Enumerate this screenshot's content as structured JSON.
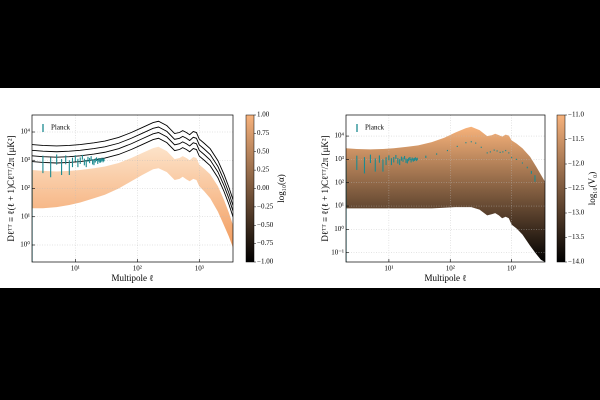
{
  "chart_data": [
    {
      "type": "line",
      "xlabel": "Multipole ℓ",
      "ylabel": "Dℓᵀᵀ ≡ ℓ(ℓ + 1)Cℓᵀᵀ/2π  [μK²]",
      "xscale": "log",
      "yscale": "log",
      "grid": true,
      "legend": "upper left",
      "xlim": [
        2,
        3500
      ],
      "ylim": [
        0.25,
        40000
      ],
      "xticks": [
        {
          "value": 10,
          "label": "10¹"
        },
        {
          "value": 100,
          "label": "10²"
        },
        {
          "value": 1000,
          "label": "10³"
        }
      ],
      "yticks": [
        {
          "value": 1,
          "label": "10⁰"
        },
        {
          "value": 10,
          "label": "10¹"
        },
        {
          "value": 100,
          "label": "10²"
        },
        {
          "value": 1000,
          "label": "10³"
        },
        {
          "value": 10000,
          "label": "10⁴"
        }
      ],
      "x": [
        2,
        3,
        5,
        8,
        12,
        20,
        30,
        50,
        80,
        120,
        180,
        220,
        300,
        400,
        480,
        540,
        620,
        700,
        800,
        900,
        1000,
        1200,
        1500,
        2000,
        2500,
        3000,
        3500
      ],
      "band": {
        "colors": [
          "#f29c5e",
          "#fde3c9"
        ],
        "lower": [
          20,
          20,
          22,
          26,
          32,
          45,
          60,
          100,
          180,
          300,
          480,
          520,
          380,
          200,
          220,
          260,
          210,
          180,
          220,
          200,
          120,
          80,
          45,
          15,
          5,
          2,
          0.8
        ],
        "upper": [
          450,
          420,
          400,
          420,
          450,
          520,
          600,
          800,
          1200,
          1800,
          2700,
          3000,
          2100,
          1100,
          1200,
          1400,
          1200,
          1000,
          1300,
          1200,
          700,
          500,
          320,
          120,
          40,
          14,
          5
        ]
      },
      "lines": [
        {
          "color": "#000000",
          "values": [
            900,
            840,
            800,
            840,
            900,
            1040,
            1200,
            1600,
            2400,
            3600,
            5400,
            6000,
            4200,
            2200,
            2400,
            2800,
            2400,
            2000,
            2600,
            2400,
            1400,
            1000,
            640,
            240,
            80,
            28,
            10
          ]
        },
        {
          "color": "#000000",
          "values": [
            1440,
            1340,
            1280,
            1340,
            1440,
            1660,
            1920,
            2560,
            3840,
            5760,
            8640,
            9600,
            6720,
            3520,
            3840,
            4480,
            3840,
            3200,
            4160,
            3840,
            2240,
            1600,
            1020,
            384,
            128,
            45,
            16
          ]
        },
        {
          "color": "#000000",
          "values": [
            2250,
            2100,
            2000,
            2100,
            2250,
            2600,
            3000,
            4000,
            6000,
            9000,
            13500,
            15000,
            10500,
            5500,
            6000,
            7000,
            6000,
            5000,
            6500,
            6000,
            3500,
            2500,
            1600,
            600,
            200,
            70,
            25
          ]
        },
        {
          "color": "#000000",
          "values": [
            3600,
            3360,
            3200,
            3360,
            3600,
            4160,
            4800,
            6400,
            9600,
            14400,
            21600,
            24000,
            16800,
            8800,
            9600,
            11200,
            9600,
            8000,
            10400,
            9600,
            5600,
            4000,
            2560,
            960,
            320,
            112,
            40
          ]
        }
      ],
      "errorbars": {
        "name": "Planck",
        "color": "#1b8a90",
        "x": [
          2,
          3,
          4,
          5,
          6,
          7,
          8,
          9,
          10,
          11,
          12,
          13,
          14,
          15,
          16,
          17,
          18,
          19,
          20,
          21,
          22,
          23,
          24,
          25,
          26,
          27,
          28,
          29
        ],
        "values": [
          250,
          900,
          750,
          1150,
          700,
          1100,
          650,
          900,
          1200,
          850,
          1000,
          1300,
          900,
          800,
          1100,
          1000,
          1200,
          900,
          850,
          1000,
          1100,
          900,
          1050,
          950,
          1000,
          1100,
          980,
          1050
        ],
        "errors": [
          600,
          550,
          500,
          450,
          400,
          380,
          350,
          330,
          300,
          280,
          260,
          250,
          240,
          230,
          220,
          210,
          200,
          190,
          180,
          170,
          165,
          160,
          155,
          150,
          145,
          140,
          135,
          130
        ]
      },
      "colorbar": {
        "label": "log₁₀(α)",
        "lim": [
          -1,
          1
        ],
        "colors": [
          "#000000",
          "#f7b27c"
        ],
        "ticks": [
          {
            "value": 1,
            "label": "1.00"
          },
          {
            "value": 0.75,
            "label": "0.75"
          },
          {
            "value": 0.5,
            "label": "0.50"
          },
          {
            "value": 0.25,
            "label": "0.25"
          },
          {
            "value": 0,
            "label": "0.00"
          },
          {
            "value": -0.25,
            "label": "−0.25"
          },
          {
            "value": -0.5,
            "label": "−0.50"
          },
          {
            "value": -0.75,
            "label": "−0.75"
          },
          {
            "value": -1,
            "label": "−1.00"
          }
        ]
      }
    },
    {
      "type": "line",
      "xlabel": "Multipole ℓ",
      "ylabel": "Dℓᵀᵀ ≡ ℓ(ℓ + 1)Cℓᵀᵀ/2π  [μK²]",
      "xscale": "log",
      "yscale": "log",
      "grid": true,
      "legend": "upper left",
      "xlim": [
        2,
        3500
      ],
      "ylim": [
        0.04,
        80000
      ],
      "xticks": [
        {
          "value": 10,
          "label": "10¹"
        },
        {
          "value": 100,
          "label": "10²"
        },
        {
          "value": 1000,
          "label": "10³"
        }
      ],
      "yticks": [
        {
          "value": 0.1,
          "label": "10⁻¹"
        },
        {
          "value": 1,
          "label": "10⁰"
        },
        {
          "value": 10,
          "label": "10¹"
        },
        {
          "value": 100,
          "label": "10²"
        },
        {
          "value": 1000,
          "label": "10³"
        },
        {
          "value": 10000,
          "label": "10⁴"
        }
      ],
      "x": [
        2,
        3,
        5,
        8,
        12,
        20,
        30,
        50,
        80,
        120,
        180,
        220,
        300,
        400,
        480,
        540,
        620,
        700,
        800,
        900,
        1000,
        1200,
        1500,
        2000,
        2500,
        3000,
        3500
      ],
      "band": {
        "colors": [
          "#000000",
          "#f7b27a"
        ],
        "lower": [
          8,
          8,
          8,
          8,
          8,
          8,
          8,
          8,
          8.5,
          9,
          9,
          9,
          7,
          4,
          4.5,
          5,
          4,
          3,
          3.5,
          3,
          1.6,
          1.1,
          0.6,
          0.2,
          0.09,
          0.05,
          0.04
        ],
        "upper": [
          3000,
          2800,
          2700,
          2800,
          3000,
          3500,
          4000,
          5500,
          8500,
          14000,
          22000,
          25000,
          18000,
          10000,
          11000,
          12500,
          11000,
          9500,
          11500,
          10500,
          6500,
          4800,
          3000,
          1300,
          500,
          220,
          110
        ]
      },
      "lines": [],
      "errorbars": {
        "name": "Planck",
        "color": "#1b8a90",
        "x": [
          2,
          3,
          4,
          5,
          6,
          7,
          8,
          9,
          10,
          11,
          12,
          13,
          14,
          15,
          16,
          17,
          18,
          19,
          20,
          21,
          22,
          23,
          24,
          25,
          26,
          27,
          28,
          29,
          40,
          60,
          90,
          130,
          180,
          220,
          260,
          320,
          400,
          450,
          520,
          580,
          650,
          720,
          800,
          900,
          1000,
          1200,
          1500,
          1800,
          2100,
          2400
        ],
        "values": [
          250,
          900,
          750,
          1150,
          700,
          1100,
          650,
          900,
          1200,
          850,
          1000,
          1300,
          900,
          800,
          1100,
          1000,
          1200,
          900,
          850,
          1000,
          1100,
          900,
          1050,
          950,
          1000,
          1100,
          980,
          1050,
          1300,
          1700,
          2400,
          3600,
          5200,
          5700,
          5000,
          3300,
          1900,
          2100,
          2500,
          2300,
          2000,
          2100,
          2400,
          1900,
          1200,
          1000,
          700,
          450,
          280,
          160
        ],
        "errors": [
          600,
          550,
          500,
          450,
          400,
          380,
          350,
          330,
          300,
          280,
          260,
          250,
          240,
          230,
          220,
          210,
          200,
          190,
          180,
          170,
          165,
          160,
          155,
          150,
          145,
          140,
          135,
          130,
          150,
          120,
          100,
          90,
          70,
          60,
          50,
          40,
          30,
          30,
          30,
          30,
          30,
          30,
          30,
          30,
          30,
          30,
          30,
          35,
          40,
          50
        ]
      },
      "colorbar": {
        "label": "log₁₀(V₀)",
        "lim": [
          -14,
          -11
        ],
        "colors": [
          "#000000",
          "#f7b27c"
        ],
        "ticks": [
          {
            "value": -11,
            "label": "−11.0"
          },
          {
            "value": -11.5,
            "label": "−11.5"
          },
          {
            "value": -12,
            "label": "−12.0"
          },
          {
            "value": -12.5,
            "label": "−12.5"
          },
          {
            "value": -13,
            "label": "−13.0"
          },
          {
            "value": -13.5,
            "label": "−13.5"
          },
          {
            "value": -14,
            "label": "−14.0"
          }
        ]
      }
    }
  ]
}
